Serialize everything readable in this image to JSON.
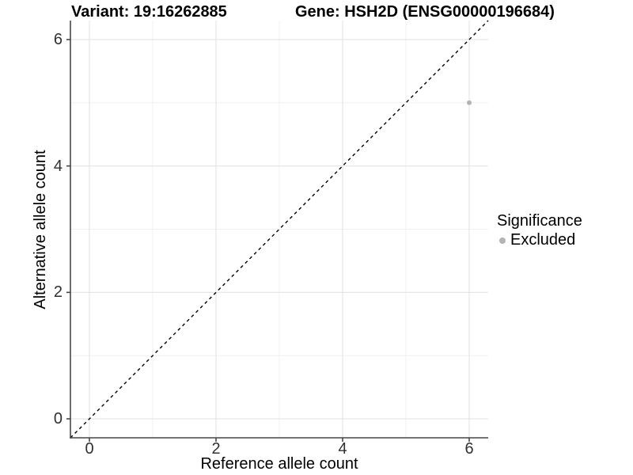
{
  "header": {
    "variant_title": "Variant: 19:16262885",
    "gene_title": "Gene: HSH2D (ENSG00000196684)"
  },
  "chart_data": {
    "type": "scatter",
    "xlabel": "Reference allele count",
    "ylabel": "Alternative allele count",
    "xlim": [
      -0.3,
      6.3
    ],
    "ylim": [
      -0.3,
      6.3
    ],
    "x_ticks": [
      0,
      2,
      4,
      6
    ],
    "y_ticks": [
      0,
      2,
      4,
      6
    ],
    "x_minor_ticks": [
      1,
      3,
      5
    ],
    "y_minor_ticks": [
      1,
      3,
      5
    ],
    "grid": {
      "on": true,
      "major_color": "#e3e3e3",
      "minor_color": "#f0f0f0"
    },
    "axis_line_color": "#474747",
    "reference_line": {
      "type": "identity",
      "slope": 1,
      "intercept": 0,
      "style": "dashed",
      "color": "#000000"
    },
    "series": [
      {
        "name": "Excluded",
        "color": "#b3b3b3",
        "points": [
          {
            "x": 6,
            "y": 5
          }
        ]
      }
    ],
    "legend_position": "right"
  },
  "legend": {
    "title": "Significance",
    "items": [
      {
        "label": "Excluded",
        "color": "#b3b3b3"
      }
    ]
  }
}
